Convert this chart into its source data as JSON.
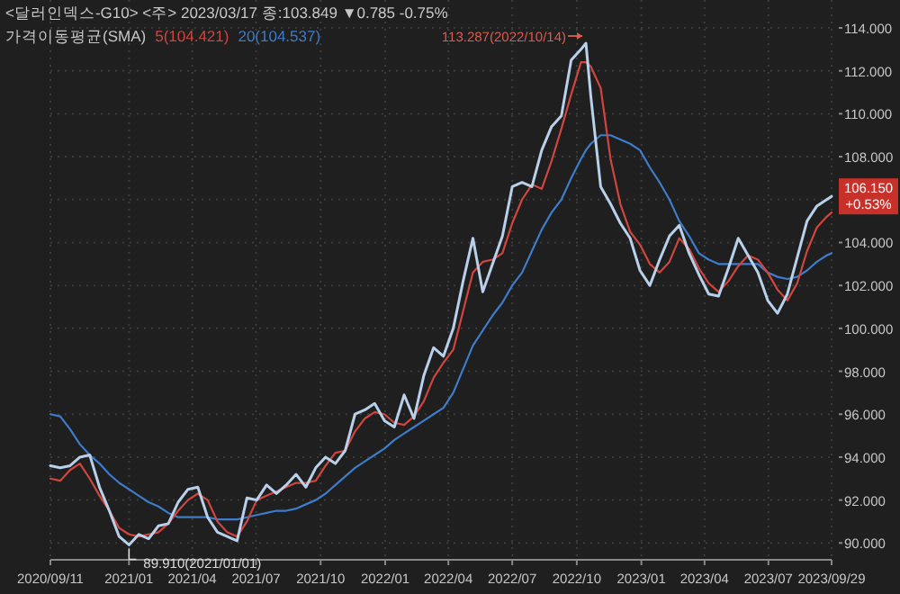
{
  "chart_data": {
    "type": "line",
    "title": "<달러인덱스-G10> <주> 2023/03/17 종:103.849 ▼0.785 -0.75%",
    "legend_title": "가격이동평균(SMA)",
    "x": [
      "2020-09-11",
      "2020-09-25",
      "2020-10-09",
      "2020-10-23",
      "2020-11-06",
      "2020-11-20",
      "2020-12-04",
      "2020-12-18",
      "2021-01-01",
      "2021-01-15",
      "2021-01-29",
      "2021-02-12",
      "2021-02-26",
      "2021-03-12",
      "2021-03-26",
      "2021-04-09",
      "2021-04-23",
      "2021-05-07",
      "2021-05-21",
      "2021-06-04",
      "2021-06-18",
      "2021-07-02",
      "2021-07-16",
      "2021-07-30",
      "2021-08-13",
      "2021-08-27",
      "2021-09-10",
      "2021-09-24",
      "2021-10-08",
      "2021-10-22",
      "2021-11-05",
      "2021-11-19",
      "2021-12-03",
      "2021-12-17",
      "2021-12-31",
      "2022-01-14",
      "2022-01-28",
      "2022-02-11",
      "2022-02-25",
      "2022-03-11",
      "2022-03-25",
      "2022-04-08",
      "2022-04-22",
      "2022-05-06",
      "2022-05-20",
      "2022-06-03",
      "2022-06-17",
      "2022-07-01",
      "2022-07-15",
      "2022-07-29",
      "2022-08-12",
      "2022-08-26",
      "2022-09-09",
      "2022-09-23",
      "2022-10-07",
      "2022-10-14",
      "2022-10-21",
      "2022-11-04",
      "2022-11-18",
      "2022-12-02",
      "2022-12-16",
      "2022-12-30",
      "2023-01-13",
      "2023-01-27",
      "2023-02-10",
      "2023-02-24",
      "2023-03-10",
      "2023-03-24",
      "2023-04-07",
      "2023-04-21",
      "2023-05-05",
      "2023-05-19",
      "2023-06-02",
      "2023-06-16",
      "2023-06-30",
      "2023-07-14",
      "2023-07-28",
      "2023-08-11",
      "2023-08-25",
      "2023-09-08",
      "2023-09-22",
      "2023-09-29"
    ],
    "series": [
      {
        "color": "#b8d0ea",
        "values": [
          93.6,
          93.5,
          93.6,
          94.0,
          94.1,
          92.6,
          91.5,
          90.3,
          89.91,
          90.4,
          90.2,
          90.8,
          90.9,
          91.9,
          92.5,
          92.6,
          91.2,
          90.5,
          90.3,
          90.1,
          92.1,
          92.0,
          92.7,
          92.3,
          92.7,
          93.2,
          92.6,
          93.5,
          94.0,
          93.7,
          94.3,
          96.0,
          96.2,
          96.5,
          95.7,
          95.4,
          96.9,
          95.8,
          97.8,
          99.1,
          98.7,
          100.0,
          102.2,
          104.2,
          101.7,
          103.0,
          104.3,
          106.6,
          106.8,
          106.6,
          108.3,
          109.4,
          109.9,
          112.5,
          113.0,
          113.287,
          110.8,
          106.6,
          105.8,
          104.9,
          104.2,
          102.7,
          102.0,
          103.2,
          104.3,
          104.8,
          103.5,
          102.5,
          101.6,
          101.5,
          102.8,
          104.2,
          103.4,
          102.6,
          101.3,
          100.7,
          101.6,
          103.3,
          105.0,
          105.7,
          106.0,
          106.15
        ]
      },
      {
        "name": "5(104.421)",
        "color": "#d0463e",
        "values": [
          93.0,
          92.9,
          93.4,
          93.7,
          93.0,
          92.2,
          91.5,
          90.7,
          90.4,
          90.3,
          90.4,
          90.5,
          90.9,
          91.5,
          92.0,
          92.3,
          92.0,
          91.0,
          90.5,
          90.3,
          91.0,
          92.0,
          92.2,
          92.4,
          92.6,
          92.8,
          92.8,
          92.9,
          93.6,
          94.2,
          94.3,
          95.2,
          95.8,
          96.1,
          96.0,
          95.6,
          95.5,
          95.9,
          96.6,
          97.7,
          98.4,
          99.0,
          100.8,
          102.6,
          103.1,
          103.2,
          103.5,
          104.9,
          106.0,
          106.7,
          106.5,
          107.8,
          109.3,
          110.9,
          112.4,
          112.4,
          112.2,
          111.2,
          107.9,
          105.8,
          104.5,
          103.9,
          103.0,
          102.6,
          103.1,
          104.2,
          103.7,
          102.8,
          102.1,
          101.7,
          102.2,
          102.9,
          103.4,
          103.2,
          102.6,
          101.8,
          101.3,
          102.1,
          103.6,
          104.7,
          105.2,
          105.4
        ]
      },
      {
        "name": "20(104.537)",
        "color": "#3d7cc9",
        "values": [
          96.0,
          95.9,
          95.3,
          94.6,
          94.1,
          93.7,
          93.2,
          92.8,
          92.5,
          92.2,
          91.9,
          91.7,
          91.4,
          91.2,
          91.2,
          91.2,
          91.2,
          91.1,
          91.1,
          91.1,
          91.2,
          91.3,
          91.4,
          91.5,
          91.5,
          91.6,
          91.8,
          92.0,
          92.3,
          92.7,
          93.1,
          93.5,
          93.8,
          94.1,
          94.4,
          94.8,
          95.1,
          95.4,
          95.7,
          96.0,
          96.3,
          97.0,
          98.1,
          99.2,
          99.9,
          100.6,
          101.2,
          102.0,
          102.6,
          103.6,
          104.6,
          105.4,
          106.0,
          107.0,
          107.9,
          108.3,
          108.6,
          109.0,
          109.0,
          108.8,
          108.6,
          108.3,
          107.5,
          106.8,
          106.0,
          105.0,
          104.3,
          103.5,
          103.2,
          103.0,
          103.0,
          103.0,
          103.0,
          103.0,
          102.6,
          102.4,
          102.3,
          102.4,
          102.7,
          103.1,
          103.4,
          103.5
        ]
      }
    ],
    "xlim": [
      "2020-09-11",
      "2023-09-29"
    ],
    "ylim": [
      89.3,
      115.3
    ],
    "xticks": [
      {
        "value": "2020-09-11",
        "label": "2020/09/11"
      },
      {
        "value": "2021-01-01",
        "label": "2021/01"
      },
      {
        "value": "2021-04-01",
        "label": "2021/04"
      },
      {
        "value": "2021-07-01",
        "label": "2021/07"
      },
      {
        "value": "2021-10-01",
        "label": "2021/10"
      },
      {
        "value": "2022-01-01",
        "label": "2022/01"
      },
      {
        "value": "2022-04-01",
        "label": "2022/04"
      },
      {
        "value": "2022-07-01",
        "label": "2022/07"
      },
      {
        "value": "2022-10-01",
        "label": "2022/10"
      },
      {
        "value": "2023-01-01",
        "label": "2023/01"
      },
      {
        "value": "2023-04-01",
        "label": "2023/04"
      },
      {
        "value": "2023-07-01",
        "label": "2023/07"
      },
      {
        "value": "2023-09-29",
        "label": "2023/09/29"
      }
    ],
    "yticks": [
      {
        "value": 90,
        "label": "90.000"
      },
      {
        "value": 92,
        "label": "92.000"
      },
      {
        "value": 94,
        "label": "94.000"
      },
      {
        "value": 96,
        "label": "96.000"
      },
      {
        "value": 98,
        "label": "98.000"
      },
      {
        "value": 100,
        "label": "100.000"
      },
      {
        "value": 102,
        "label": "102.000"
      },
      {
        "value": 104,
        "label": "104.000"
      },
      {
        "value": 106,
        "label": null
      },
      {
        "value": 108,
        "label": "108.000"
      },
      {
        "value": 110,
        "label": "110.000"
      },
      {
        "value": 112,
        "label": "112.000"
      },
      {
        "value": 114,
        "label": "114.000"
      }
    ],
    "annotations": [
      {
        "text": "89.910(2021/01/01)",
        "x": "2021-01-01",
        "y": 89.91
      },
      {
        "text": "113.287(2022/10/14)",
        "x": "2022-10-14",
        "y": 113.287
      },
      {
        "text": "106.150 +0.53%",
        "x": "2023-09-29",
        "y": 106.15
      }
    ],
    "grid": true,
    "legend": "top left",
    "marker": "none",
    "line_style": "solid"
  }
}
